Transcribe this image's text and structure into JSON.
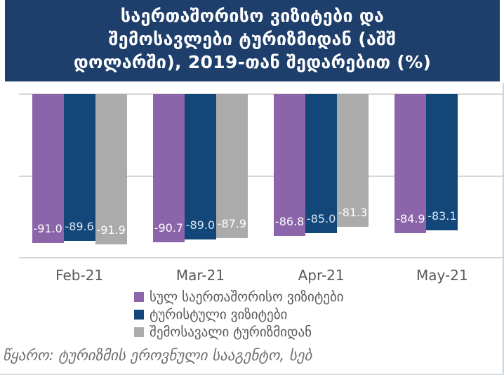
{
  "title": {
    "lines": [
      "საერთაშორისო ვიზიტები და",
      "შემოსავლები ტურიზმიდან (აშშ",
      "დოლარში), 2019-თან შედარებით (%)"
    ]
  },
  "source_note": "წყარო: ტურიზმის ეროვნული სააგენტო, სებ",
  "colors": {
    "title_bg": "#1e3e6c",
    "title_text": "#ffffff",
    "gridline": "#d6d6d6",
    "axis_label": "#595959",
    "legend_text": "#595959",
    "source_text": "#6e6e6e"
  },
  "chart_data": {
    "type": "bar",
    "title": "საერთაშორისო ვიზიტები და შემოსავლები ტურიზმიდან (აშშ დოლარში), 2019-თან შედარებით (%)",
    "categories": [
      "Feb-21",
      "Mar-21",
      "Apr-21",
      "May-21"
    ],
    "series": [
      {
        "name": "სულ საერთაშორისო ვიზიტები",
        "color": "#8c64a9",
        "label_color": "#ffffff",
        "values": [
          -91.0,
          -90.7,
          -86.8,
          -84.9
        ]
      },
      {
        "name": "ტურისტული ვიზიტები",
        "color": "#134679",
        "label_color": "#d9e7f5",
        "values": [
          -89.6,
          -89.0,
          -85.0,
          -83.1
        ]
      },
      {
        "name": "შემოსავალი ტურიზმიდან",
        "color": "#ababab",
        "label_color": "#ffffff",
        "values": [
          -91.9,
          -87.9,
          -81.3,
          null
        ]
      }
    ],
    "ylim": [
      -100,
      0
    ],
    "gridline_values": [
      0,
      -50,
      -100
    ],
    "grid": true,
    "legend_position": "bottom",
    "data_labels": "inside-end",
    "value_format": "one-decimal"
  }
}
